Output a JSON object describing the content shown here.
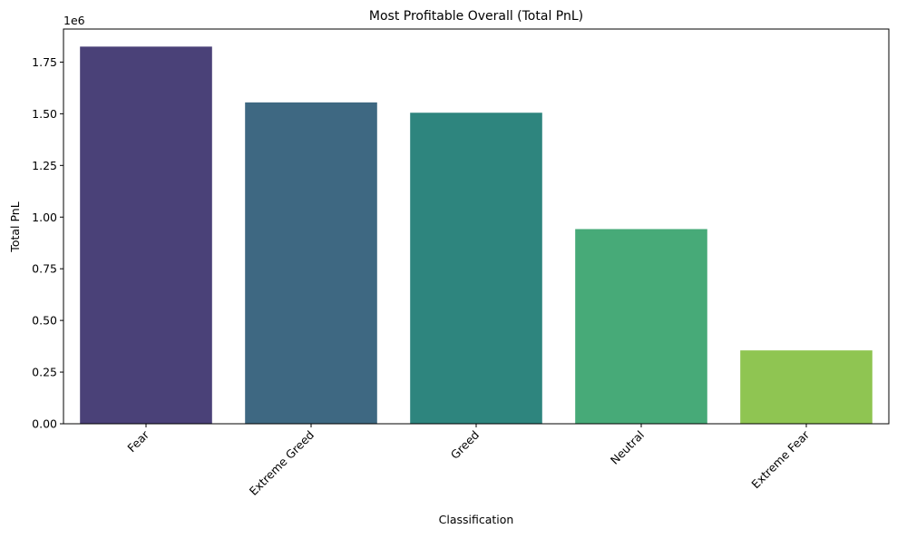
{
  "chart_data": {
    "type": "bar",
    "title": "Most Profitable Overall (Total PnL)",
    "xlabel": "Classification",
    "ylabel": "Total PnL",
    "y_offset_label": "1e6",
    "categories": [
      "Fear",
      "Extreme Greed",
      "Greed",
      "Neutral",
      "Extreme Fear"
    ],
    "values": [
      1825000,
      1555000,
      1505000,
      942000,
      355000
    ],
    "colors": [
      "#4a4178",
      "#3e6882",
      "#2e857e",
      "#47aa78",
      "#8fc552"
    ],
    "ylim": [
      0,
      1910000
    ],
    "yticks": [
      0,
      250000,
      500000,
      750000,
      1000000,
      1250000,
      1500000,
      1750000
    ],
    "ytick_labels": [
      "0.00",
      "0.25",
      "0.50",
      "0.75",
      "1.00",
      "1.25",
      "1.50",
      "1.75"
    ],
    "grid": false,
    "legend": "none"
  }
}
